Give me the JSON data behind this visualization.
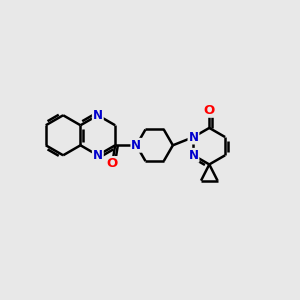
{
  "background_color": "#e8e8e8",
  "bond_color": "#000000",
  "N_color": "#0000cd",
  "O_color": "#ff0000",
  "line_width": 1.8,
  "font_size": 8.5,
  "xlim": [
    0,
    10
  ],
  "ylim": [
    1,
    9
  ]
}
